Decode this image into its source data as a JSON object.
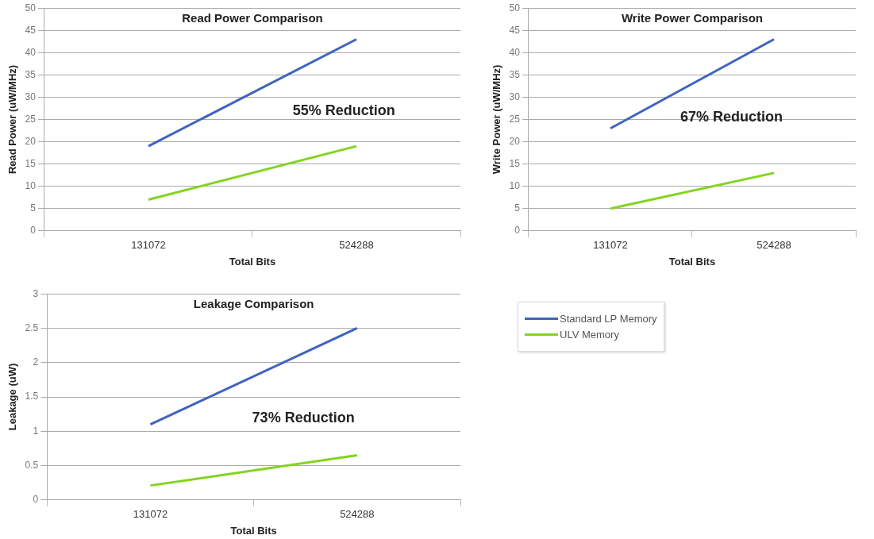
{
  "chart_data": [
    {
      "type": "line",
      "title": "Read Power Comparison",
      "xlabel": "Total Bits",
      "ylabel": "Read Power (uW/MHz)",
      "categories": [
        "131072",
        "524288"
      ],
      "series": [
        {
          "color": "#3f63bf",
          "values": [
            19,
            43
          ]
        },
        {
          "color": "#82d41f",
          "values": [
            7,
            19
          ]
        }
      ],
      "ylim": [
        0,
        50
      ],
      "yticks": [
        0,
        5,
        10,
        15,
        20,
        25,
        30,
        35,
        40,
        45,
        50
      ],
      "grid": "y",
      "legend": false,
      "annotations": [
        "55% Reduction"
      ]
    },
    {
      "type": "line",
      "title": "Write Power Comparison",
      "xlabel": "Total Bits",
      "ylabel": "Write Power (uW/MHz)",
      "categories": [
        "131072",
        "524288"
      ],
      "series": [
        {
          "color": "#3f63bf",
          "values": [
            23,
            43
          ]
        },
        {
          "color": "#82d41f",
          "values": [
            5,
            13
          ]
        }
      ],
      "ylim": [
        0,
        50
      ],
      "yticks": [
        0,
        5,
        10,
        15,
        20,
        25,
        30,
        35,
        40,
        45,
        50
      ],
      "grid": "y",
      "legend": false,
      "annotations": [
        "67% Reduction"
      ]
    },
    {
      "type": "line",
      "title": "Leakage Comparison",
      "xlabel": "Total Bits",
      "ylabel": "Leakage (uW)",
      "categories": [
        "131072",
        "524288"
      ],
      "series": [
        {
          "name": "Standard LP Memory",
          "color": "#3f63bf",
          "values": [
            1.1,
            2.5
          ]
        },
        {
          "name": "ULV Memory",
          "color": "#82d41f",
          "values": [
            0.21,
            0.65
          ]
        }
      ],
      "ylim": [
        0,
        3
      ],
      "yticks": [
        0,
        0.5,
        1,
        1.5,
        2,
        2.5,
        3
      ],
      "grid": "y",
      "legend": "right",
      "annotations": [
        "73% Reduction"
      ]
    }
  ]
}
